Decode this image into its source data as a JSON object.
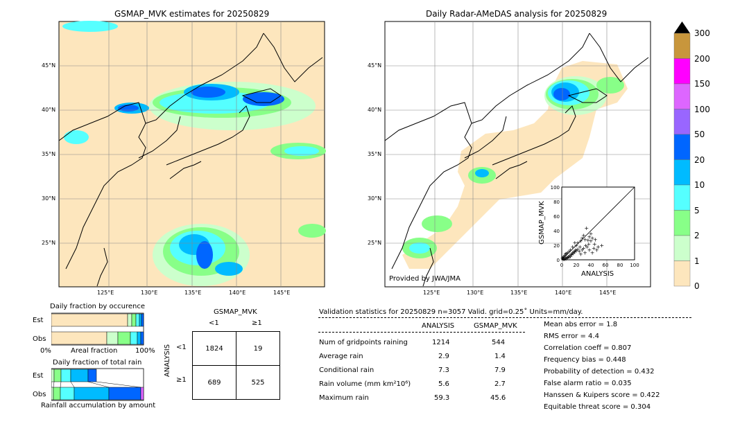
{
  "left_map": {
    "title": "GSMAP_MVK estimates for 20250829",
    "lat_labels": [
      "45°N",
      "40°N",
      "35°N",
      "30°N",
      "25°N"
    ],
    "lon_labels": [
      "125°E",
      "130°E",
      "135°E",
      "140°E",
      "145°E"
    ]
  },
  "right_map": {
    "title": "Daily Radar-AMeDAS analysis for 20250829",
    "lat_labels": [
      "45°N",
      "40°N",
      "35°N",
      "30°N",
      "25°N"
    ],
    "lon_labels": [
      "125°E",
      "130°E",
      "135°E",
      "140°E",
      "145°E"
    ],
    "credit": "Provided by JWA/JMA"
  },
  "colorbar": {
    "ticks": [
      "300",
      "200",
      "150",
      "100",
      "50",
      "20",
      "10",
      "5",
      "2",
      "1",
      "0"
    ],
    "colors": [
      "#c8963c",
      "#ff00ff",
      "#dd66ff",
      "#9966ff",
      "#0066ff",
      "#00bbff",
      "#55ffff",
      "#88ff88",
      "#ccffcc",
      "#fde6bd"
    ]
  },
  "occurrence": {
    "title": "Daily fraction by occurence",
    "rows": [
      "Est",
      "Obs"
    ],
    "xticks": [
      "0%",
      "100%"
    ],
    "xlabel": "Areal fraction"
  },
  "total_rain": {
    "title": "Daily fraction of total rain",
    "rows": [
      "Est",
      "Obs"
    ],
    "xlabel": "Rainfall accumulation by amount"
  },
  "contingency": {
    "title": "GSMAP_MVK",
    "col_labels": [
      "<1",
      "≥1"
    ],
    "row_labels": [
      "<1",
      "≥1"
    ],
    "ylabel": "ANALYSIS",
    "cells": [
      [
        "1824",
        "19"
      ],
      [
        "689",
        "525"
      ]
    ]
  },
  "validation": {
    "header": "Validation statistics for 20250829  n=3057 Valid. grid=0.25˚ Units=mm/day.",
    "col_analysis": "ANALYSIS",
    "col_gsmap": "GSMAP_MVK",
    "rows": [
      {
        "label": "Num of gridpoints raining",
        "analysis": "1214",
        "gsmap": "544"
      },
      {
        "label": "Average rain",
        "analysis": "2.9",
        "gsmap": "1.4"
      },
      {
        "label": "Conditional rain",
        "analysis": "7.3",
        "gsmap": "7.9"
      },
      {
        "label": "Rain volume (mm km²10⁶)",
        "analysis": "5.6",
        "gsmap": "2.7"
      },
      {
        "label": "Maximum rain",
        "analysis": "59.3",
        "gsmap": "45.6"
      }
    ],
    "scores": [
      "Mean abs error =    1.8",
      "RMS error =    4.4",
      "Correlation coeff =  0.807",
      "Frequency bias =  0.448",
      "Probability of detection =  0.432",
      "False alarm ratio =  0.035",
      "Hanssen & Kuipers score =  0.422",
      "Equitable threat score =  0.304"
    ]
  },
  "chart_data": [
    {
      "type": "scatter",
      "xlabel": "ANALYSIS",
      "ylabel": "GSMAP_MVK",
      "xlim": [
        0,
        100
      ],
      "ylim": [
        0,
        100
      ],
      "xticks": [
        "0",
        "20",
        "40",
        "60",
        "80",
        "100"
      ],
      "yticks": [
        "0",
        "20",
        "40",
        "60",
        "80",
        "100"
      ],
      "points": [
        [
          2,
          1
        ],
        [
          3,
          2
        ],
        [
          4,
          1
        ],
        [
          5,
          3
        ],
        [
          6,
          2
        ],
        [
          7,
          4
        ],
        [
          8,
          3
        ],
        [
          9,
          5
        ],
        [
          10,
          4
        ],
        [
          11,
          6
        ],
        [
          12,
          5
        ],
        [
          13,
          8
        ],
        [
          14,
          7
        ],
        [
          15,
          10
        ],
        [
          16,
          9
        ],
        [
          17,
          12
        ],
        [
          18,
          11
        ],
        [
          19,
          14
        ],
        [
          20,
          13
        ],
        [
          22,
          15
        ],
        [
          24,
          12
        ],
        [
          25,
          18
        ],
        [
          26,
          8
        ],
        [
          28,
          14
        ],
        [
          30,
          16
        ],
        [
          32,
          10
        ],
        [
          33,
          20
        ],
        [
          35,
          18
        ],
        [
          37,
          22
        ],
        [
          38,
          14
        ],
        [
          40,
          26
        ],
        [
          42,
          30
        ],
        [
          44,
          16
        ],
        [
          45,
          22
        ],
        [
          30,
          34
        ],
        [
          28,
          30
        ],
        [
          32,
          28
        ],
        [
          36,
          27
        ],
        [
          20,
          20
        ],
        [
          18,
          24
        ],
        [
          15,
          18
        ],
        [
          12,
          14
        ],
        [
          10,
          12
        ],
        [
          8,
          10
        ],
        [
          6,
          9
        ],
        [
          4,
          6
        ],
        [
          3,
          5
        ],
        [
          2,
          4
        ],
        [
          1,
          3
        ],
        [
          5,
          8
        ],
        [
          50,
          18
        ],
        [
          48,
          14
        ],
        [
          46,
          28
        ],
        [
          34,
          44
        ],
        [
          40,
          36
        ],
        [
          42,
          10
        ],
        [
          55,
          20
        ],
        [
          38,
          32
        ],
        [
          26,
          26
        ],
        [
          22,
          24
        ]
      ]
    }
  ]
}
